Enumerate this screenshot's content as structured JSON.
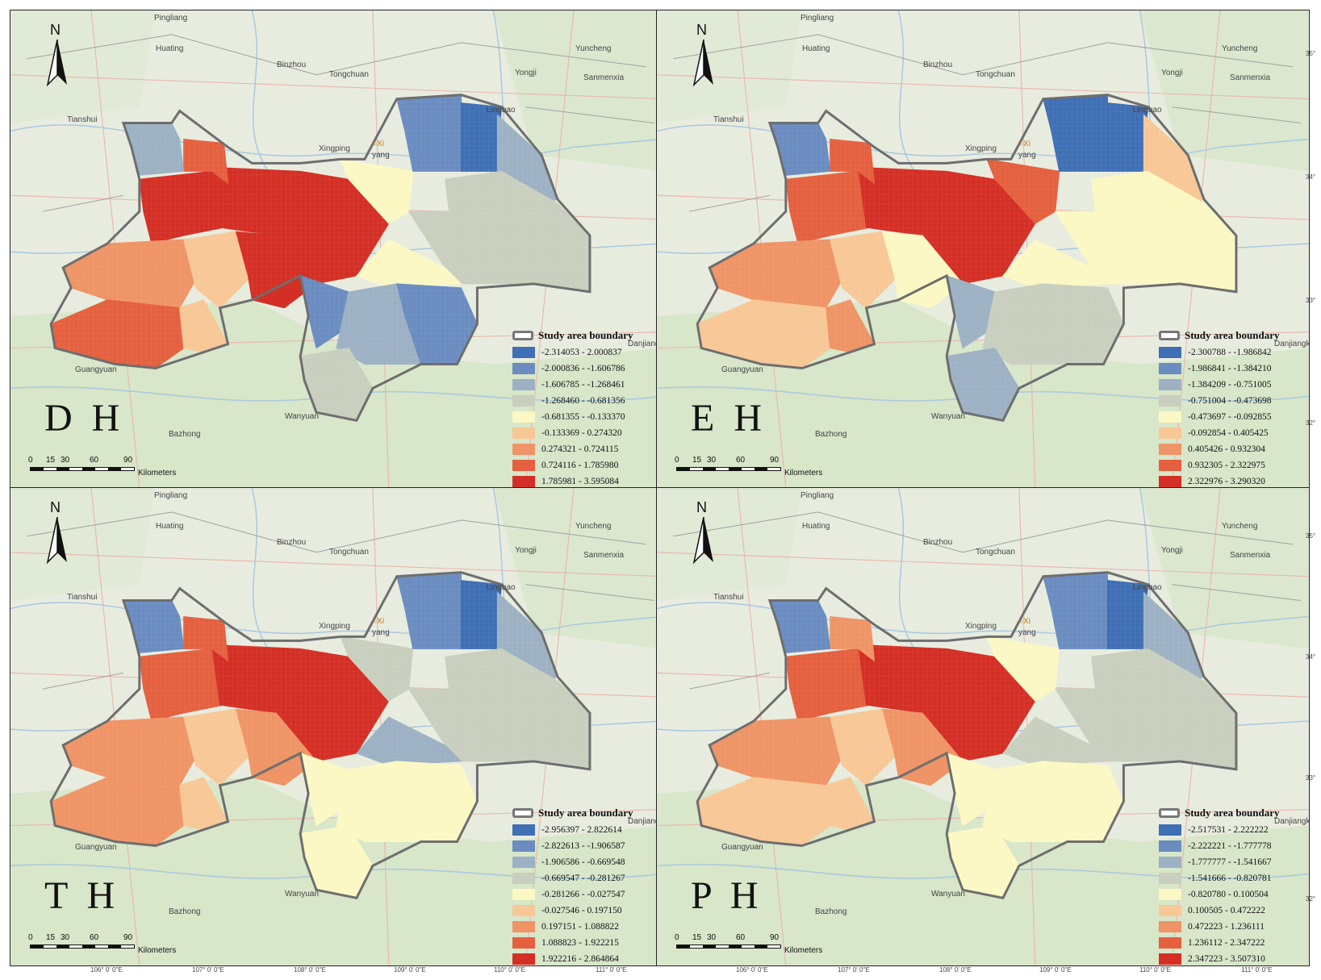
{
  "panels": [
    {
      "id": "DH",
      "label": "D H",
      "legend_title": "Study area boundary",
      "classes": [
        "-2.314053 - 2.000837",
        "-2.000836 - -1.606786",
        "-1.606785 - -1.268461",
        "-1.268460 - -0.681356",
        "-0.681355 - -0.133370",
        "-0.133369 - 0.274320",
        "0.274321 - 0.724115",
        "0.724116 - 1.785980",
        "1.785981 - 3.595084"
      ],
      "zones": [
        8,
        8,
        7,
        6,
        5,
        7,
        8,
        5,
        4,
        3,
        4,
        1,
        0,
        2,
        3,
        1,
        2,
        3,
        1,
        2
      ]
    },
    {
      "id": "EH",
      "label": "E H",
      "legend_title": "Study area boundary",
      "classes": [
        "-2.300788 - -1.986842",
        "-1.986841 - -1.384210",
        "-1.384209 - -0.751005",
        "-0.751004 - -0.473698",
        "-0.473697 - -0.092855",
        "-0.092854 - 0.405425",
        "0.405426 - 0.932304",
        "0.932305 - 2.322975",
        "2.322976 - 3.290320"
      ],
      "zones": [
        7,
        8,
        7,
        6,
        5,
        5,
        4,
        6,
        7,
        4,
        4,
        0,
        0,
        5,
        4,
        2,
        3,
        2,
        3,
        1
      ]
    },
    {
      "id": "TH",
      "label": "T H",
      "legend_title": "Study area boundary",
      "classes": [
        "-2.956397 - 2.822614",
        "-2.822613 - -1.906587",
        "-1.906586 - -0.669548",
        "-0.669547 - -0.281267",
        "-0.281266 - -0.027547",
        "-0.027546 - 0.197150",
        "0.197151 - 1.088822",
        "1.088823 - 1.922215",
        "1.922216 - 2.864864"
      ],
      "zones": [
        7,
        8,
        7,
        6,
        5,
        6,
        6,
        5,
        3,
        3,
        2,
        1,
        0,
        2,
        3,
        4,
        4,
        4,
        4,
        1
      ]
    },
    {
      "id": "PH",
      "label": "P H",
      "legend_title": "Study area boundary",
      "classes": [
        "-2.517531 - 2.222222",
        "-2.222221 - -1.777778",
        "-1.777777 - -1.541667",
        "-1.541666 - -0.820781",
        "-0.820780 - 0.100504",
        "0.100505 - 0.472222",
        "0.472223 - 1.236111",
        "1.236112 - 2.347222",
        "2.347223 - 3.507310"
      ],
      "zones": [
        7,
        8,
        6,
        6,
        5,
        5,
        6,
        5,
        4,
        3,
        3,
        1,
        0,
        2,
        3,
        4,
        4,
        4,
        4,
        1
      ]
    }
  ],
  "palette": [
    "#3f6fb4",
    "#6a8cc0",
    "#9db1c4",
    "#c9cfbe",
    "#fbf8c4",
    "#f8c796",
    "#ef9466",
    "#e4603f",
    "#d42f25"
  ],
  "scale": {
    "ticks": [
      "0",
      "15",
      "30",
      "60",
      "90"
    ],
    "unit": "Kilometers"
  },
  "north_label": "N",
  "places": {
    "pingliang": "Pingliang",
    "huating": "Huating",
    "binzhou": "Binzhou",
    "tongchuan": "Tongchuan",
    "yuncheng": "Yuncheng",
    "sanmenxia": "Sanmenxia",
    "tianshui": "Tianshui",
    "xingping": "Xingping",
    "xianyang": "yang",
    "xi": "Xi",
    "lingbao": "Lingbao",
    "yongji": "Yongji",
    "guangyuan": "Guangyuan",
    "bazhong": "Bazhong",
    "wanyuan": "Wanyuan",
    "danjiangkou": "Danjiangkou"
  },
  "lon_labels": [
    "106° 0' 0\"E",
    "107° 0' 0\"E",
    "108° 0' 0\"E",
    "109° 0' 0\"E",
    "110° 0' 0\"E",
    "111° 0' 0\"E"
  ],
  "lat_labels": [
    "35°",
    "34°",
    "33°",
    "32°"
  ]
}
